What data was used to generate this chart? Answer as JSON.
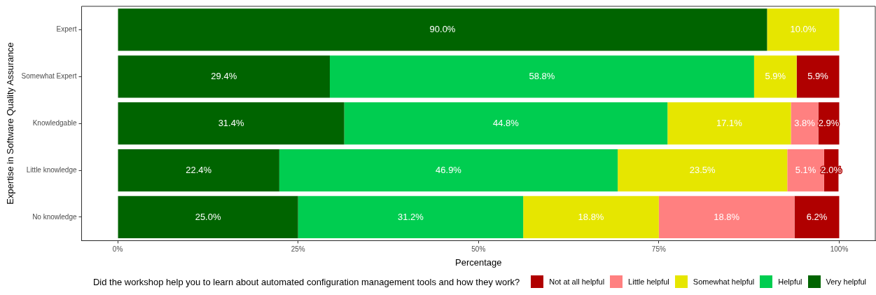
{
  "chart_data": {
    "type": "bar",
    "orientation": "horizontal",
    "stacked": true,
    "xlabel": "Percentage",
    "ylabel": "Expertise in Software Quality Assurance",
    "legend_title": "Did the workshop help you to learn about automated configuration management tools and how they work?",
    "legend": "bottom",
    "categories": [
      "Expert",
      "Somewhat Expert",
      "Knowledgable",
      "Little knowledge",
      "No knowledge"
    ],
    "xlim": [
      -5,
      105
    ],
    "xticks": [
      {
        "value": 0,
        "label": "0%"
      },
      {
        "value": 25,
        "label": "25%"
      },
      {
        "value": 50,
        "label": "50%"
      },
      {
        "value": 75,
        "label": "75%"
      },
      {
        "value": 100,
        "label": "100%"
      }
    ],
    "series": [
      {
        "name": "Very helpful",
        "color": "#006400",
        "values": [
          90.0,
          29.4,
          31.4,
          22.4,
          25.0
        ],
        "value_labels": [
          "90.0%",
          "29.4%",
          "31.4%",
          "22.4%",
          "25.0%"
        ]
      },
      {
        "name": "Helpful",
        "color": "#00cd50",
        "values": [
          null,
          58.8,
          44.8,
          46.9,
          31.2
        ],
        "value_labels": [
          null,
          "58.8%",
          "44.8%",
          "46.9%",
          "31.2%"
        ]
      },
      {
        "name": "Somewhat helpful",
        "color": "#e6e600",
        "values": [
          10.0,
          5.9,
          17.1,
          23.5,
          18.8
        ],
        "value_labels": [
          "10.0%",
          "5.9%",
          "17.1%",
          "23.5%",
          "18.8%"
        ]
      },
      {
        "name": "Little helpful",
        "color": "#ff8080",
        "values": [
          null,
          null,
          3.8,
          5.1,
          18.8
        ],
        "value_labels": [
          null,
          null,
          "3.8%",
          "5.1%",
          "18.8%"
        ]
      },
      {
        "name": "Not at all helpful",
        "color": "#b00000",
        "values": [
          null,
          5.9,
          2.9,
          2.0,
          6.2
        ],
        "value_labels": [
          null,
          "5.9%",
          "2.9%",
          "2.0%",
          "6.2%"
        ]
      }
    ]
  }
}
